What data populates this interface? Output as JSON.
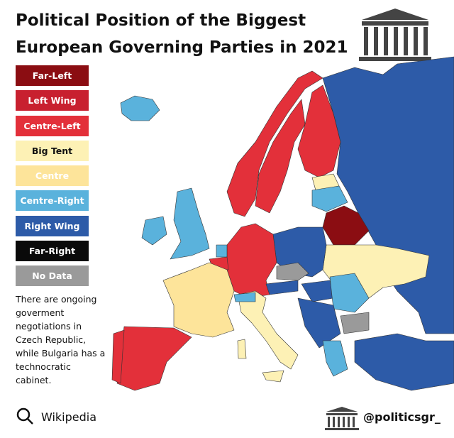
{
  "header": {
    "title_lines": [
      "Political Position of the Biggest",
      "European Governing Parties in 2021"
    ]
  },
  "legend": [
    {
      "label": "Far-Left",
      "color": "#8b0d12",
      "text_color": "#ffffff"
    },
    {
      "label": "Left Wing",
      "color": "#c8202f",
      "text_color": "#ffffff"
    },
    {
      "label": "Centre-Left",
      "color": "#e3303a",
      "text_color": "#ffffff"
    },
    {
      "label": "Big Tent",
      "color": "#fdf1b5",
      "text_color": "#111111"
    },
    {
      "label": "Centre",
      "color": "#fde49a",
      "text_color": "#ffffff"
    },
    {
      "label": "Centre-Right",
      "color": "#5ab2dc",
      "text_color": "#ffffff"
    },
    {
      "label": "Right Wing",
      "color": "#2d5ba8",
      "text_color": "#ffffff"
    },
    {
      "label": "Far-Right",
      "color": "#0a0a0a",
      "text_color": "#ffffff"
    },
    {
      "label": "No Data",
      "color": "#9a9a9a",
      "text_color": "#ffffff"
    }
  ],
  "note": "There are ongoing goverment negotiations in Czech Republic, while Bulgaria has a technocratic cabinet.",
  "source": "Wikipedia",
  "handle": "@politicsgr_"
}
